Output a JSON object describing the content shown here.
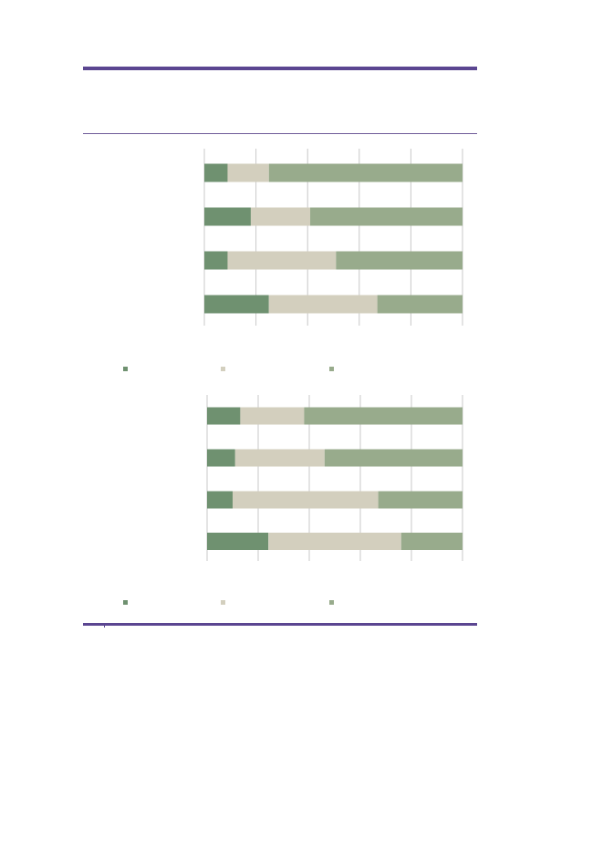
{
  "colors": {
    "rule": "#5b4691",
    "grid": "#c8c8c8",
    "series": [
      "#6f9170",
      "#d3cfbe",
      "#98ab8c"
    ]
  },
  "chart_data": [
    {
      "type": "bar",
      "orientation": "horizontal",
      "stacked": true,
      "title": "",
      "xlabel": "",
      "ylabel": "",
      "xlim": [
        0,
        100
      ],
      "grid": true,
      "legend": "bottom",
      "categories": [
        "",
        "",
        "",
        ""
      ],
      "series": [
        {
          "values": [
            9,
            18,
            9,
            25
          ]
        },
        {
          "values": [
            16,
            23,
            42,
            42
          ]
        },
        {
          "values": [
            75,
            59,
            49,
            33
          ]
        }
      ]
    },
    {
      "type": "bar",
      "orientation": "horizontal",
      "stacked": true,
      "title": "",
      "xlabel": "",
      "ylabel": "",
      "xlim": [
        0,
        100
      ],
      "grid": true,
      "legend": "bottom",
      "categories": [
        "",
        "",
        "",
        ""
      ],
      "series": [
        {
          "values": [
            13,
            11,
            10,
            24
          ]
        },
        {
          "values": [
            25,
            35,
            57,
            52
          ]
        },
        {
          "values": [
            62,
            54,
            33,
            24
          ]
        }
      ]
    }
  ]
}
